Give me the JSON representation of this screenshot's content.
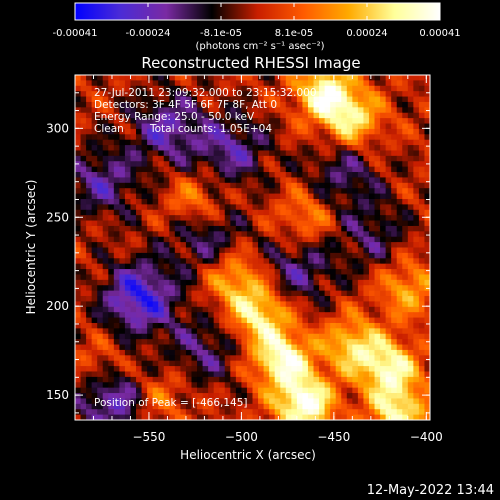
{
  "colors": {
    "background": "#000000",
    "axis": "#ffffff",
    "text": "#ffffff"
  },
  "colorbar": {
    "colormap": [
      "#0000ff",
      "#4b2bd6",
      "#7a2aa3",
      "#000000",
      "#c81e00",
      "#ff5a00",
      "#ffaa00",
      "#ffff9a",
      "#ffffff"
    ],
    "min": -0.00041,
    "max": 0.00041,
    "tick_labels": [
      "-0.00041",
      "-0.00024",
      "-8.1e-05",
      "8.1e-05",
      "0.00024",
      "0.00041"
    ],
    "unit_label": "(photons cm⁻² s⁻¹ asec⁻²)"
  },
  "chart_data": {
    "type": "heatmap",
    "title": "Reconstructed RHESSI Image",
    "xlabel": "Heliocentric X (arcsec)",
    "ylabel": "Heliocentric Y (arcsec)",
    "xlim": [
      -590,
      -398
    ],
    "ylim": [
      136,
      330
    ],
    "x_ticks": [
      -550,
      -500,
      -450,
      -400
    ],
    "x_tick_labels": [
      "−550",
      "−500",
      "−450",
      "−400"
    ],
    "y_ticks": [
      150,
      200,
      250,
      300
    ],
    "y_tick_labels": [
      "150",
      "200",
      "250",
      "300"
    ],
    "value_range": [
      -0.00041,
      0.00041
    ],
    "annotations": {
      "time_range": "27-Jul-2011 23:09:32.000 to 23:15:32.000",
      "detectors": "Detectors: 3F 4F 5F 6F 7F 8F, Att 0",
      "energy_range": "Energy Range: 25.0 - 50.0 keV",
      "method": "Clean",
      "total_counts": "Total counts: 1.05E+04",
      "peak": "Position of Peak = [-466,145]"
    },
    "peak_position": [
      -466,
      145
    ],
    "sources": [
      {
        "x": -466,
        "y": 145,
        "intensity": 1.0
      },
      {
        "x": -478,
        "y": 170,
        "intensity": 0.9
      },
      {
        "x": -490,
        "y": 195,
        "intensity": 0.75
      },
      {
        "x": -420,
        "y": 165,
        "intensity": 0.8
      },
      {
        "x": -440,
        "y": 178,
        "intensity": 0.65
      },
      {
        "x": -455,
        "y": 320,
        "intensity": 0.85
      },
      {
        "x": -440,
        "y": 305,
        "intensity": 0.7
      },
      {
        "x": -503,
        "y": 215,
        "intensity": 0.55
      },
      {
        "x": -525,
        "y": 258,
        "intensity": 0.45
      },
      {
        "x": -465,
        "y": 250,
        "intensity": 0.4
      },
      {
        "x": -575,
        "y": 165,
        "intensity": 0.4
      },
      {
        "x": -545,
        "y": 150,
        "intensity": 0.35
      },
      {
        "x": -410,
        "y": 210,
        "intensity": 0.5
      },
      {
        "x": -415,
        "y": 140,
        "intensity": 0.75
      }
    ],
    "sinks": [
      {
        "x": -555,
        "y": 205,
        "intensity": 0.8
      },
      {
        "x": -570,
        "y": 150,
        "intensity": 0.7
      },
      {
        "x": -540,
        "y": 300,
        "intensity": 0.55
      },
      {
        "x": -505,
        "y": 288,
        "intensity": 0.5
      },
      {
        "x": -575,
        "y": 270,
        "intensity": 0.5
      },
      {
        "x": -470,
        "y": 220,
        "intensity": 0.45
      },
      {
        "x": -445,
        "y": 275,
        "intensity": 0.4
      },
      {
        "x": -520,
        "y": 240,
        "intensity": 0.45
      },
      {
        "x": -430,
        "y": 240,
        "intensity": 0.35
      },
      {
        "x": -520,
        "y": 175,
        "intensity": 0.4
      }
    ]
  },
  "footer": {
    "date": "12-May-2022 13:44"
  }
}
